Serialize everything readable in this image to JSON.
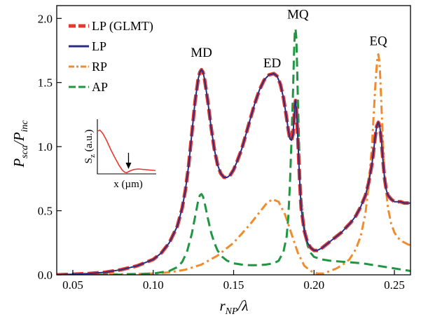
{
  "chart_data": {
    "type": "line",
    "title": "",
    "xlabel": {
      "main": "r",
      "sub": "NP",
      "rest": "/λ"
    },
    "ylabel": {
      "main": "P",
      "sub": "sca",
      "mid": "/P",
      "sub2": "inc"
    },
    "xlim": [
      0.04,
      0.26
    ],
    "ylim": [
      0.0,
      2.1
    ],
    "xticks": [
      0.05,
      0.1,
      0.15,
      0.2,
      0.25
    ],
    "xtick_labels": [
      "0.05",
      "0.10",
      "0.15",
      "0.20",
      "0.25"
    ],
    "yticks": [
      0.0,
      0.5,
      1.0,
      1.5,
      2.0
    ],
    "ytick_labels": [
      "0.0",
      "0.5",
      "1.0",
      "1.5",
      "2.0"
    ],
    "legend_position": "top-left",
    "grid": false,
    "peak_labels": [
      {
        "text": "MD",
        "x": 0.13,
        "y": 1.7
      },
      {
        "text": "ED",
        "x": 0.174,
        "y": 1.62
      },
      {
        "text": "MQ",
        "x": 0.19,
        "y": 2.0
      },
      {
        "text": "EQ",
        "x": 0.24,
        "y": 1.79
      }
    ],
    "series": [
      {
        "name": "LP (GLMT)",
        "color": "#e8382e",
        "dash": "dashed",
        "width": 5,
        "x": [
          0.04,
          0.05,
          0.06,
          0.07,
          0.08,
          0.09,
          0.1,
          0.105,
          0.11,
          0.115,
          0.118,
          0.12,
          0.122,
          0.124,
          0.126,
          0.128,
          0.129,
          0.13,
          0.131,
          0.132,
          0.134,
          0.136,
          0.138,
          0.14,
          0.142,
          0.144,
          0.146,
          0.148,
          0.15,
          0.152,
          0.155,
          0.158,
          0.16,
          0.163,
          0.166,
          0.169,
          0.172,
          0.175,
          0.177,
          0.179,
          0.181,
          0.183,
          0.184,
          0.185,
          0.186,
          0.187,
          0.1875,
          0.188,
          0.1885,
          0.189,
          0.19,
          0.191,
          0.192,
          0.194,
          0.196,
          0.198,
          0.2,
          0.202,
          0.205,
          0.208,
          0.211,
          0.214,
          0.217,
          0.22,
          0.223,
          0.226,
          0.229,
          0.232,
          0.234,
          0.236,
          0.237,
          0.238,
          0.239,
          0.24,
          0.241,
          0.242,
          0.243,
          0.244,
          0.245,
          0.246,
          0.248,
          0.25,
          0.252,
          0.254,
          0.256,
          0.258,
          0.26
        ],
        "y": [
          0.0,
          0.005,
          0.01,
          0.02,
          0.04,
          0.07,
          0.12,
          0.17,
          0.25,
          0.38,
          0.52,
          0.66,
          0.85,
          1.1,
          1.35,
          1.53,
          1.58,
          1.6,
          1.58,
          1.52,
          1.35,
          1.15,
          0.98,
          0.86,
          0.79,
          0.76,
          0.76,
          0.78,
          0.82,
          0.88,
          0.98,
          1.11,
          1.2,
          1.33,
          1.44,
          1.52,
          1.56,
          1.57,
          1.55,
          1.49,
          1.38,
          1.22,
          1.13,
          1.06,
          1.05,
          1.1,
          1.2,
          1.32,
          1.36,
          1.3,
          1.05,
          0.75,
          0.52,
          0.34,
          0.25,
          0.21,
          0.19,
          0.19,
          0.21,
          0.24,
          0.27,
          0.3,
          0.33,
          0.37,
          0.41,
          0.46,
          0.53,
          0.62,
          0.72,
          0.86,
          0.96,
          1.07,
          1.16,
          1.19,
          1.15,
          1.03,
          0.87,
          0.74,
          0.66,
          0.62,
          0.59,
          0.57,
          0.57,
          0.57,
          0.56,
          0.56,
          0.56
        ]
      },
      {
        "name": "LP",
        "color": "#2b2f80",
        "dash": "solid",
        "width": 2,
        "x": [
          0.04,
          0.05,
          0.06,
          0.07,
          0.08,
          0.09,
          0.1,
          0.105,
          0.11,
          0.115,
          0.118,
          0.12,
          0.122,
          0.124,
          0.126,
          0.128,
          0.129,
          0.13,
          0.131,
          0.132,
          0.134,
          0.136,
          0.138,
          0.14,
          0.142,
          0.144,
          0.146,
          0.148,
          0.15,
          0.152,
          0.155,
          0.158,
          0.16,
          0.163,
          0.166,
          0.169,
          0.172,
          0.175,
          0.177,
          0.179,
          0.181,
          0.183,
          0.184,
          0.185,
          0.186,
          0.187,
          0.1875,
          0.188,
          0.1885,
          0.189,
          0.19,
          0.191,
          0.192,
          0.194,
          0.196,
          0.198,
          0.2,
          0.202,
          0.205,
          0.208,
          0.211,
          0.214,
          0.217,
          0.22,
          0.223,
          0.226,
          0.229,
          0.232,
          0.234,
          0.236,
          0.237,
          0.238,
          0.239,
          0.24,
          0.241,
          0.242,
          0.243,
          0.244,
          0.245,
          0.246,
          0.248,
          0.25,
          0.252,
          0.254,
          0.256,
          0.258,
          0.26
        ],
        "y": [
          0.0,
          0.005,
          0.01,
          0.02,
          0.04,
          0.07,
          0.12,
          0.17,
          0.25,
          0.38,
          0.52,
          0.66,
          0.85,
          1.1,
          1.35,
          1.53,
          1.58,
          1.6,
          1.58,
          1.52,
          1.35,
          1.15,
          0.98,
          0.86,
          0.79,
          0.76,
          0.76,
          0.78,
          0.82,
          0.88,
          0.98,
          1.11,
          1.2,
          1.33,
          1.44,
          1.52,
          1.56,
          1.57,
          1.55,
          1.49,
          1.38,
          1.22,
          1.13,
          1.06,
          1.05,
          1.1,
          1.2,
          1.32,
          1.36,
          1.3,
          1.05,
          0.75,
          0.52,
          0.34,
          0.25,
          0.21,
          0.19,
          0.19,
          0.21,
          0.24,
          0.27,
          0.3,
          0.33,
          0.37,
          0.41,
          0.46,
          0.53,
          0.62,
          0.72,
          0.86,
          0.96,
          1.07,
          1.16,
          1.19,
          1.15,
          1.03,
          0.87,
          0.74,
          0.66,
          0.62,
          0.59,
          0.57,
          0.57,
          0.57,
          0.56,
          0.56,
          0.56
        ]
      },
      {
        "name": "RP",
        "color": "#f08c2e",
        "dash": "dashdot",
        "width": 3,
        "x": [
          0.04,
          0.06,
          0.08,
          0.1,
          0.11,
          0.12,
          0.13,
          0.14,
          0.15,
          0.16,
          0.165,
          0.17,
          0.174,
          0.178,
          0.182,
          0.186,
          0.19,
          0.194,
          0.198,
          0.202,
          0.206,
          0.21,
          0.214,
          0.218,
          0.222,
          0.226,
          0.229,
          0.232,
          0.234,
          0.236,
          0.237,
          0.238,
          0.239,
          0.2395,
          0.24,
          0.2405,
          0.241,
          0.242,
          0.243,
          0.244,
          0.246,
          0.248,
          0.25,
          0.252,
          0.255,
          0.258,
          0.26
        ],
        "y": [
          0.0,
          0.0,
          0.005,
          0.01,
          0.02,
          0.04,
          0.08,
          0.15,
          0.25,
          0.39,
          0.47,
          0.55,
          0.59,
          0.57,
          0.47,
          0.32,
          0.17,
          0.07,
          0.03,
          0.01,
          0.01,
          0.03,
          0.05,
          0.08,
          0.12,
          0.2,
          0.3,
          0.48,
          0.7,
          1.0,
          1.22,
          1.45,
          1.63,
          1.7,
          1.72,
          1.68,
          1.6,
          1.3,
          1.0,
          0.75,
          0.52,
          0.4,
          0.33,
          0.29,
          0.26,
          0.24,
          0.23
        ]
      },
      {
        "name": "AP",
        "color": "#1f9641",
        "dash": "dashed",
        "width": 3,
        "x": [
          0.04,
          0.06,
          0.08,
          0.1,
          0.11,
          0.115,
          0.118,
          0.121,
          0.124,
          0.126,
          0.128,
          0.129,
          0.13,
          0.131,
          0.132,
          0.134,
          0.136,
          0.138,
          0.14,
          0.143,
          0.146,
          0.15,
          0.155,
          0.16,
          0.165,
          0.17,
          0.175,
          0.178,
          0.181,
          0.183,
          0.184,
          0.185,
          0.186,
          0.187,
          0.1875,
          0.188,
          0.1885,
          0.189,
          0.1895,
          0.19,
          0.191,
          0.192,
          0.194,
          0.196,
          0.198,
          0.2,
          0.205,
          0.21,
          0.22,
          0.23,
          0.24,
          0.25,
          0.26
        ],
        "y": [
          0.0,
          0.0,
          0.002,
          0.01,
          0.03,
          0.06,
          0.1,
          0.18,
          0.32,
          0.45,
          0.58,
          0.62,
          0.63,
          0.61,
          0.56,
          0.44,
          0.33,
          0.25,
          0.19,
          0.14,
          0.11,
          0.09,
          0.08,
          0.075,
          0.075,
          0.08,
          0.09,
          0.11,
          0.18,
          0.3,
          0.45,
          0.7,
          1.05,
          1.45,
          1.7,
          1.88,
          1.92,
          1.85,
          1.62,
          1.35,
          0.9,
          0.6,
          0.35,
          0.23,
          0.17,
          0.14,
          0.12,
          0.11,
          0.1,
          0.09,
          0.07,
          0.05,
          0.03
        ]
      }
    ],
    "inset": {
      "ylabel_main": "S",
      "ylabel_sub": "z",
      "ylabel_rest": " (a.u.)",
      "xlabel": "x (µm)",
      "curve_color": "#e8382e",
      "curve": [
        [
          0,
          0.8
        ],
        [
          0.03,
          0.82
        ],
        [
          0.08,
          0.76
        ],
        [
          0.15,
          0.62
        ],
        [
          0.22,
          0.45
        ],
        [
          0.3,
          0.28
        ],
        [
          0.37,
          0.14
        ],
        [
          0.42,
          0.06
        ],
        [
          0.46,
          0.02
        ],
        [
          0.5,
          0.01
        ],
        [
          0.55,
          0.04
        ],
        [
          0.62,
          0.07
        ],
        [
          0.7,
          0.08
        ],
        [
          0.8,
          0.07
        ],
        [
          0.9,
          0.06
        ],
        [
          1.0,
          0.05
        ]
      ],
      "arrow_at": 0.53
    }
  }
}
